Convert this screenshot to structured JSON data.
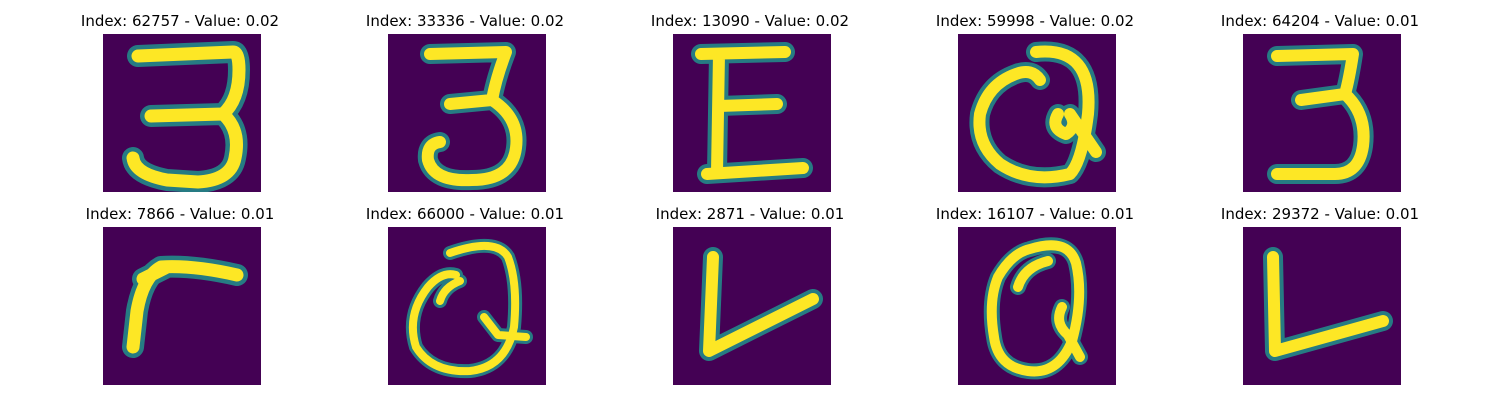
{
  "panels": [
    {
      "title": "Index: 62757 - Value: 0.02",
      "glyph": "digit-three"
    },
    {
      "title": "Index: 33336 - Value: 0.02",
      "glyph": "digit-three"
    },
    {
      "title": "Index: 13090 - Value: 0.02",
      "glyph": "letter-e"
    },
    {
      "title": "Index: 59998 - Value: 0.02",
      "glyph": "letter-q"
    },
    {
      "title": "Index: 64204 - Value: 0.01",
      "glyph": "digit-three"
    },
    {
      "title": "Index: 7866 - Value: 0.01",
      "glyph": "letter-r"
    },
    {
      "title": "Index: 66000 - Value: 0.01",
      "glyph": "letter-q"
    },
    {
      "title": "Index: 2871 - Value: 0.01",
      "glyph": "letter-v"
    },
    {
      "title": "Index: 16107 - Value: 0.01",
      "glyph": "letter-q"
    },
    {
      "title": "Index: 29372 - Value: 0.01",
      "glyph": "letter-l"
    }
  ],
  "colors": {
    "background": "#440154",
    "stroke": "#fde725",
    "edge": "#21918c"
  }
}
